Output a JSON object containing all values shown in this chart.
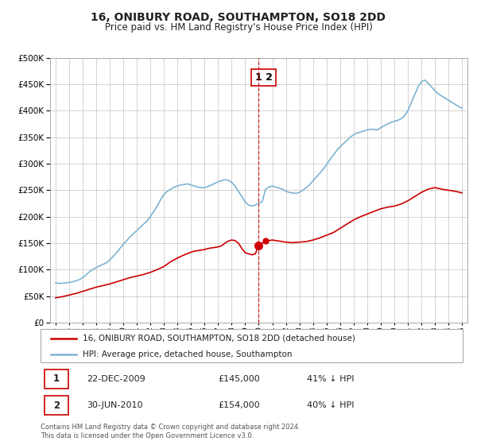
{
  "title": "16, ONIBURY ROAD, SOUTHAMPTON, SO18 2DD",
  "subtitle": "Price paid vs. HM Land Registry's House Price Index (HPI)",
  "ylim": [
    0,
    500000
  ],
  "yticks": [
    0,
    50000,
    100000,
    150000,
    200000,
    250000,
    300000,
    350000,
    400000,
    450000,
    500000
  ],
  "bg_color": "#ffffff",
  "grid_color": "#cccccc",
  "plot_area_bg": "#ffffff",
  "red_line_color": "#cc0000",
  "blue_line_color": "#7fb3d3",
  "red_label": "16, ONIBURY ROAD, SOUTHAMPTON, SO18 2DD (detached house)",
  "blue_label": "HPI: Average price, detached house, Southampton",
  "transaction1_date": "22-DEC-2009",
  "transaction1_price": "£145,000",
  "transaction1_info": "41% ↓ HPI",
  "transaction2_date": "30-JUN-2010",
  "transaction2_price": "£154,000",
  "transaction2_info": "40% ↓ HPI",
  "footer": "Contains HM Land Registry data © Crown copyright and database right 2024.\nThis data is licensed under the Open Government Licence v3.0.",
  "sale1_year": 2009.97,
  "sale1_price": 145000,
  "sale2_year": 2010.5,
  "sale2_price": 154000,
  "years_hpi": [
    1995.0,
    1995.25,
    1995.5,
    1995.75,
    1996.0,
    1996.25,
    1996.5,
    1996.75,
    1997.0,
    1997.25,
    1997.5,
    1997.75,
    1998.0,
    1998.25,
    1998.5,
    1998.75,
    1999.0,
    1999.25,
    1999.5,
    1999.75,
    2000.0,
    2000.25,
    2000.5,
    2000.75,
    2001.0,
    2001.25,
    2001.5,
    2001.75,
    2002.0,
    2002.25,
    2002.5,
    2002.75,
    2003.0,
    2003.25,
    2003.5,
    2003.75,
    2004.0,
    2004.25,
    2004.5,
    2004.75,
    2005.0,
    2005.25,
    2005.5,
    2005.75,
    2006.0,
    2006.25,
    2006.5,
    2006.75,
    2007.0,
    2007.25,
    2007.5,
    2007.75,
    2008.0,
    2008.25,
    2008.5,
    2008.75,
    2009.0,
    2009.25,
    2009.5,
    2009.75,
    2010.0,
    2010.25,
    2010.5,
    2010.75,
    2011.0,
    2011.25,
    2011.5,
    2011.75,
    2012.0,
    2012.25,
    2012.5,
    2012.75,
    2013.0,
    2013.25,
    2013.5,
    2013.75,
    2014.0,
    2014.25,
    2014.5,
    2014.75,
    2015.0,
    2015.25,
    2015.5,
    2015.75,
    2016.0,
    2016.25,
    2016.5,
    2016.75,
    2017.0,
    2017.25,
    2017.5,
    2017.75,
    2018.0,
    2018.25,
    2018.5,
    2018.75,
    2019.0,
    2019.25,
    2019.5,
    2019.75,
    2020.0,
    2020.25,
    2020.5,
    2020.75,
    2021.0,
    2021.25,
    2021.5,
    2021.75,
    2022.0,
    2022.25,
    2022.5,
    2022.75,
    2023.0,
    2023.25,
    2023.5,
    2023.75,
    2024.0,
    2024.25,
    2024.5,
    2024.75,
    2025.0
  ],
  "hpi_values": [
    75000,
    74000,
    74500,
    75000,
    76000,
    77000,
    79000,
    81000,
    85000,
    90000,
    96000,
    100000,
    104000,
    107000,
    110000,
    113000,
    118000,
    125000,
    132000,
    140000,
    148000,
    155000,
    162000,
    168000,
    174000,
    180000,
    186000,
    192000,
    200000,
    210000,
    220000,
    232000,
    242000,
    248000,
    252000,
    256000,
    258000,
    260000,
    261000,
    262000,
    260000,
    258000,
    256000,
    255000,
    255000,
    257000,
    260000,
    263000,
    266000,
    268000,
    270000,
    269000,
    265000,
    258000,
    248000,
    238000,
    228000,
    222000,
    220000,
    222000,
    226000,
    228000,
    252000,
    256000,
    258000,
    256000,
    254000,
    252000,
    248000,
    246000,
    245000,
    244000,
    246000,
    250000,
    255000,
    260000,
    268000,
    275000,
    282000,
    290000,
    298000,
    308000,
    316000,
    325000,
    332000,
    338000,
    344000,
    350000,
    355000,
    358000,
    360000,
    362000,
    364000,
    365000,
    365000,
    364000,
    368000,
    372000,
    375000,
    378000,
    380000,
    382000,
    385000,
    390000,
    400000,
    415000,
    430000,
    445000,
    455000,
    458000,
    452000,
    445000,
    438000,
    432000,
    428000,
    424000,
    420000,
    416000,
    412000,
    408000,
    405000
  ],
  "years_red": [
    1995.0,
    1995.5,
    1996.0,
    1996.5,
    1997.0,
    1997.5,
    1998.0,
    1998.5,
    1999.0,
    1999.5,
    2000.0,
    2000.5,
    2001.0,
    2001.5,
    2002.0,
    2002.5,
    2003.0,
    2003.5,
    2004.0,
    2004.5,
    2005.0,
    2005.25,
    2005.5,
    2005.75,
    2006.0,
    2006.25,
    2006.5,
    2006.75,
    2007.0,
    2007.25,
    2007.5,
    2007.75,
    2008.0,
    2008.25,
    2008.5,
    2008.75,
    2009.0,
    2009.25,
    2009.5,
    2009.75,
    2009.97,
    2010.5,
    2010.75,
    2011.0,
    2011.25,
    2011.5,
    2011.75,
    2012.0,
    2012.5,
    2013.0,
    2013.5,
    2014.0,
    2014.5,
    2015.0,
    2015.5,
    2016.0,
    2016.5,
    2017.0,
    2017.5,
    2018.0,
    2018.5,
    2019.0,
    2019.5,
    2020.0,
    2020.5,
    2021.0,
    2021.5,
    2022.0,
    2022.5,
    2023.0,
    2023.5,
    2024.0,
    2024.5,
    2025.0
  ],
  "red_values": [
    47000,
    49000,
    52000,
    55000,
    59000,
    63000,
    67000,
    70000,
    73000,
    77000,
    81000,
    85000,
    88000,
    91000,
    95000,
    100000,
    106000,
    115000,
    122000,
    128000,
    133000,
    135000,
    136000,
    137000,
    138000,
    140000,
    141000,
    142000,
    143000,
    145000,
    150000,
    154000,
    156000,
    155000,
    150000,
    140000,
    132000,
    130000,
    128000,
    130000,
    145000,
    154000,
    155000,
    156000,
    155000,
    154000,
    153000,
    152000,
    151000,
    152000,
    153000,
    156000,
    160000,
    165000,
    170000,
    178000,
    186000,
    194000,
    200000,
    205000,
    210000,
    215000,
    218000,
    220000,
    224000,
    230000,
    238000,
    246000,
    252000,
    255000,
    252000,
    250000,
    248000,
    245000
  ]
}
